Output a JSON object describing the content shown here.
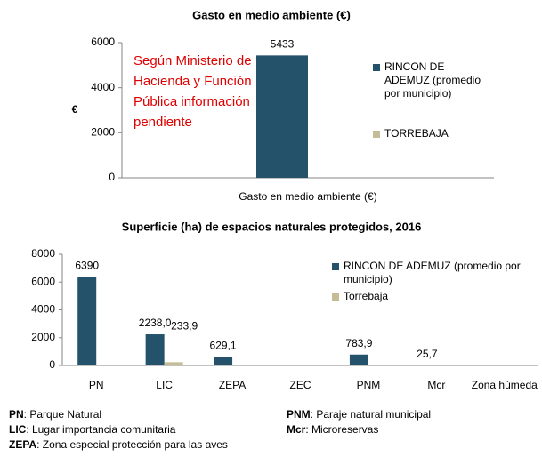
{
  "chart_data": [
    {
      "type": "bar",
      "title": "Gasto  en medio ambiente (€)",
      "ylabel": "€",
      "categories": [
        "Gasto  en medio ambiente (€)"
      ],
      "series": [
        {
          "name": "RINCON DE ADEMUZ (promedio por municipio)",
          "color": "#23526a",
          "values": [
            5433
          ]
        },
        {
          "name": "TORREBAJA",
          "color": "#c4bd97",
          "values": [
            null
          ]
        }
      ],
      "annotation": "Según Ministerio de Hacienda y Función Pública información pendiente",
      "ylim": [
        0,
        6000
      ],
      "yticks": [
        0,
        2000,
        4000,
        6000
      ],
      "grid": false
    },
    {
      "type": "bar",
      "title": "Superficie (ha) de espacios naturales protegidos, 2016",
      "categories": [
        "PN",
        "LIC",
        "ZEPA",
        "ZEC",
        "PNM",
        "Mcr",
        "Zona húmeda"
      ],
      "series": [
        {
          "name": "RINCON DE ADEMUZ  (promedio por municipio)",
          "color": "#23526a",
          "values": [
            6390,
            2238,
            629.1,
            null,
            783.9,
            25.7,
            null
          ],
          "value_labels": [
            "6390",
            "2238,0",
            "629,1",
            null,
            "783,9",
            "25,7",
            null
          ]
        },
        {
          "name": "Torrebaja",
          "color": "#c4bd97",
          "values": [
            null,
            233.9,
            null,
            null,
            null,
            null,
            null
          ],
          "value_labels": [
            null,
            "233,9",
            null,
            null,
            null,
            null,
            null
          ]
        }
      ],
      "ylim": [
        0,
        8000
      ],
      "yticks": [
        0,
        2000,
        4000,
        6000,
        8000
      ],
      "grid": false
    }
  ],
  "notes": [
    {
      "abbr": "PN",
      "text": ": Parque Natural"
    },
    {
      "abbr": "LIC",
      "text": ": Lugar importancia comunitaria"
    },
    {
      "abbr": "ZEPA",
      "text": ": Zona especial protección para las aves"
    },
    {
      "abbr": "PNM",
      "text": ": Paraje natural municipal"
    },
    {
      "abbr": "Mcr",
      "text": ": Microreservas"
    }
  ]
}
